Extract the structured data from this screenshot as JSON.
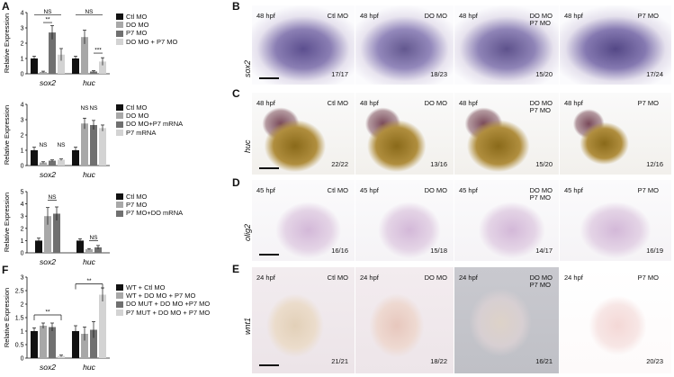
{
  "panels": {
    "A": "A",
    "B": "B",
    "C": "C",
    "D": "D",
    "E": "E",
    "F": "F"
  },
  "colors": {
    "black": "#111111",
    "dark_gray": "#707070",
    "mid_gray": "#a8a8a8",
    "light_gray": "#d3d3d3"
  },
  "charts": [
    {
      "id": "A1",
      "ylabel": "Relative Expression",
      "categories": [
        "sox2",
        "huc"
      ],
      "ylim": [
        0,
        4
      ],
      "yticks": [
        0,
        1,
        2,
        3,
        4
      ],
      "series": [
        {
          "name": "Ctl MO",
          "color": "#111111",
          "values": [
            1.0,
            1.0
          ],
          "err": [
            0.15,
            0.15
          ]
        },
        {
          "name": "DO MO",
          "color": "#a8a8a8",
          "values": [
            0.12,
            2.4
          ],
          "err": [
            0.05,
            0.45
          ]
        },
        {
          "name": "P7 MO",
          "color": "#707070",
          "values": [
            2.7,
            0.15
          ],
          "err": [
            0.45,
            0.05
          ]
        },
        {
          "name": "DO MO + P7 MO",
          "color": "#d3d3d3",
          "values": [
            1.25,
            0.8
          ],
          "err": [
            0.4,
            0.25
          ]
        }
      ],
      "annotations": [
        {
          "text": "NS",
          "cat": 0,
          "from": 0,
          "to": 3,
          "level": 3.85
        },
        {
          "text": "**",
          "cat": 0,
          "from": 1,
          "to": 2,
          "level": 3.35
        },
        {
          "text": "NS",
          "cat": 1,
          "from": 0,
          "to": 3,
          "level": 3.85
        },
        {
          "text": "***",
          "cat": 1,
          "from": 2,
          "to": 3,
          "level": 1.35
        }
      ]
    },
    {
      "id": "A2",
      "ylabel": "Relative Expression",
      "categories": [
        "sox2",
        "huc"
      ],
      "ylim": [
        0,
        4
      ],
      "yticks": [
        0,
        1,
        2,
        3,
        4
      ],
      "series": [
        {
          "name": "Ctl MO",
          "color": "#111111",
          "values": [
            1.0,
            1.0
          ],
          "err": [
            0.2,
            0.2
          ]
        },
        {
          "name": "DO MO",
          "color": "#a8a8a8",
          "values": [
            0.2,
            2.75
          ],
          "err": [
            0.05,
            0.35
          ]
        },
        {
          "name": "DO MO+P7 mRNA",
          "color": "#707070",
          "values": [
            0.32,
            2.65
          ],
          "err": [
            0.05,
            0.3
          ]
        },
        {
          "name": "P7 mRNA",
          "color": "#d3d3d3",
          "values": [
            0.38,
            2.45
          ],
          "err": [
            0.05,
            0.2
          ]
        }
      ],
      "annotations": [
        {
          "text": "NS",
          "cat": 0,
          "from": 1,
          "to": 1,
          "level": 1.15
        },
        {
          "text": "NS",
          "cat": 0,
          "from": 3,
          "to": 3,
          "level": 1.15
        },
        {
          "text": "NS",
          "cat": 1,
          "from": 1,
          "to": 1,
          "level": 3.55
        },
        {
          "text": "NS",
          "cat": 1,
          "from": 2,
          "to": 2,
          "level": 3.55
        }
      ]
    },
    {
      "id": "A3",
      "ylabel": "Relative Expression",
      "categories": [
        "sox2",
        "huc"
      ],
      "ylim": [
        0,
        5
      ],
      "yticks": [
        0,
        1,
        2,
        3,
        4,
        5
      ],
      "series": [
        {
          "name": "Ctl MO",
          "color": "#111111",
          "values": [
            1.0,
            1.0
          ],
          "err": [
            0.2,
            0.15
          ]
        },
        {
          "name": "P7 MO",
          "color": "#a8a8a8",
          "values": [
            3.0,
            0.3
          ],
          "err": [
            0.7,
            0.05
          ]
        },
        {
          "name": "P7 MO+DO mRNA",
          "color": "#707070",
          "values": [
            3.2,
            0.45
          ],
          "err": [
            0.55,
            0.15
          ]
        }
      ],
      "annotations": [
        {
          "text": "NS",
          "cat": 0,
          "from": 1,
          "to": 2,
          "level": 4.3
        },
        {
          "text": "NS",
          "cat": 1,
          "from": 1,
          "to": 2,
          "level": 1.0
        }
      ]
    },
    {
      "id": "F",
      "ylabel": "Relative Expression",
      "categories": [
        "sox2",
        "huc"
      ],
      "ylim": [
        0,
        3
      ],
      "yticks": [
        0,
        0.5,
        1,
        1.5,
        2,
        2.5,
        3
      ],
      "series": [
        {
          "name": "WT + Ctl MO",
          "color": "#111111",
          "values": [
            1.0,
            1.0
          ],
          "err": [
            0.12,
            0.2
          ]
        },
        {
          "name": "WT + DO MO + P7 MO",
          "color": "#a8a8a8",
          "values": [
            1.2,
            0.9
          ],
          "err": [
            0.1,
            0.25
          ]
        },
        {
          "name": "DO MUT + DO MO +P7 MO",
          "color": "#707070",
          "values": [
            1.15,
            1.05
          ],
          "err": [
            0.15,
            0.3
          ]
        },
        {
          "name": "P7 MUT + DO MO + P7 MO",
          "color": "#d3d3d3",
          "values": [
            0.08,
            2.35
          ],
          "err": [
            0.03,
            0.25
          ]
        }
      ],
      "annotations": [
        {
          "text": "**",
          "cat": 0,
          "from": 0,
          "to": 3,
          "level": 1.6,
          "bracket": true
        },
        {
          "text": "**",
          "cat": 1,
          "from": 0,
          "to": 3,
          "level": 2.75,
          "bracket": true
        }
      ]
    }
  ],
  "image_panels": [
    {
      "id": "B",
      "gene": "sox2",
      "images": [
        {
          "stage": "48 hpf",
          "cond": "Ctl MO",
          "ratio": "17/17"
        },
        {
          "stage": "48 hpf",
          "cond": "DO MO",
          "ratio": "18/23"
        },
        {
          "stage": "48 hpf",
          "cond": "DO MO\nP7 MO",
          "ratio": "15/20"
        },
        {
          "stage": "48 hpf",
          "cond": "P7 MO",
          "ratio": "17/24"
        }
      ]
    },
    {
      "id": "C",
      "gene": "huc",
      "images": [
        {
          "stage": "48 hpf",
          "cond": "Ctl MO",
          "ratio": "22/22"
        },
        {
          "stage": "48 hpf",
          "cond": "DO MO",
          "ratio": "13/16"
        },
        {
          "stage": "48 hpf",
          "cond": "DO MO\nP7 MO",
          "ratio": "15/20"
        },
        {
          "stage": "48 hpf",
          "cond": "P7 MO",
          "ratio": "12/16"
        }
      ]
    },
    {
      "id": "D",
      "gene": "olig2",
      "images": [
        {
          "stage": "45 hpf",
          "cond": "Ctl MO",
          "ratio": "16/16"
        },
        {
          "stage": "45 hpf",
          "cond": "DO MO",
          "ratio": "15/18"
        },
        {
          "stage": "45 hpf",
          "cond": "DO MO\nP7 MO",
          "ratio": "14/17"
        },
        {
          "stage": "45 hpf",
          "cond": "P7 MO",
          "ratio": "16/19"
        }
      ]
    },
    {
      "id": "E",
      "gene": "wnt1",
      "images": [
        {
          "stage": "24 hpf",
          "cond": "Ctl MO",
          "ratio": "21/21"
        },
        {
          "stage": "24 hpf",
          "cond": "DO MO",
          "ratio": "18/22"
        },
        {
          "stage": "24 hpf",
          "cond": "DO MO\nP7 MO",
          "ratio": "16/21"
        },
        {
          "stage": "24 hpf",
          "cond": "P7 MO",
          "ratio": "20/23"
        }
      ]
    }
  ]
}
